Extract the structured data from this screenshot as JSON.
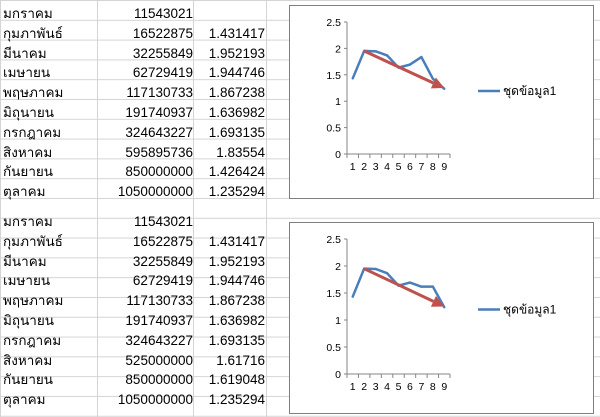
{
  "sheet": {
    "table1": [
      {
        "month": "มกราคม",
        "value": "11543021",
        "ratio": ""
      },
      {
        "month": "กุมภาพันธ์",
        "value": "16522875",
        "ratio": "1.431417"
      },
      {
        "month": "มีนาคม",
        "value": "32255849",
        "ratio": "1.952193"
      },
      {
        "month": "เมษายน",
        "value": "62729419",
        "ratio": "1.944746"
      },
      {
        "month": "พฤษภาคม",
        "value": "117130733",
        "ratio": "1.867238"
      },
      {
        "month": "มิถุนายน",
        "value": "191740937",
        "ratio": "1.636982"
      },
      {
        "month": "กรกฎาคม",
        "value": "324643227",
        "ratio": "1.693135"
      },
      {
        "month": "สิงหาคม",
        "value": "595895736",
        "ratio": "1.83554"
      },
      {
        "month": "กันยายน",
        "value": "850000000",
        "ratio": "1.426424"
      },
      {
        "month": "ตุลาคม",
        "value": "1050000000",
        "ratio": "1.235294"
      }
    ],
    "table2": [
      {
        "month": "มกราคม",
        "value": "11543021",
        "ratio": ""
      },
      {
        "month": "กุมภาพันธ์",
        "value": "16522875",
        "ratio": "1.431417"
      },
      {
        "month": "มีนาคม",
        "value": "32255849",
        "ratio": "1.952193"
      },
      {
        "month": "เมษายน",
        "value": "62729419",
        "ratio": "1.944746"
      },
      {
        "month": "พฤษภาคม",
        "value": "117130733",
        "ratio": "1.867238"
      },
      {
        "month": "มิถุนายน",
        "value": "191740937",
        "ratio": "1.636982"
      },
      {
        "month": "กรกฎาคม",
        "value": "324643227",
        "ratio": "1.693135"
      },
      {
        "month": "สิงหาคม",
        "value": "525000000",
        "ratio": "1.61716"
      },
      {
        "month": "กันยายน",
        "value": "850000000",
        "ratio": "1.619048"
      },
      {
        "month": "ตุลาคม",
        "value": "1050000000",
        "ratio": "1.235294"
      }
    ]
  },
  "chart_data": [
    {
      "type": "line",
      "x": [
        1,
        2,
        3,
        4,
        5,
        6,
        7,
        8,
        9
      ],
      "series": [
        {
          "name": "ชุดข้อมูล1",
          "values": [
            1.431417,
            1.952193,
            1.944746,
            1.867238,
            1.636982,
            1.693135,
            1.83554,
            1.426424,
            1.235294
          ],
          "color": "#4a7ebb"
        }
      ],
      "ylim": [
        0,
        2.5
      ],
      "yticks": [
        "0",
        "0.5",
        "1",
        "1.5",
        "2",
        "2.5"
      ],
      "xticks": [
        "1",
        "2",
        "3",
        "4",
        "5",
        "6",
        "7",
        "8",
        "9"
      ],
      "legend": "right",
      "trend_arrow": {
        "from_x": 2,
        "from_y": 1.95,
        "to_x": 9,
        "to_y": 1.25,
        "color": "#c0504d"
      }
    },
    {
      "type": "line",
      "x": [
        1,
        2,
        3,
        4,
        5,
        6,
        7,
        8,
        9
      ],
      "series": [
        {
          "name": "ชุดข้อมูล1",
          "values": [
            1.431417,
            1.952193,
            1.944746,
            1.867238,
            1.636982,
            1.693135,
            1.61716,
            1.619048,
            1.235294
          ],
          "color": "#4a7ebb"
        }
      ],
      "ylim": [
        0,
        2.5
      ],
      "yticks": [
        "0",
        "0.5",
        "1",
        "1.5",
        "2",
        "2.5"
      ],
      "xticks": [
        "1",
        "2",
        "3",
        "4",
        "5",
        "6",
        "7",
        "8",
        "9"
      ],
      "legend": "right",
      "trend_arrow": {
        "from_x": 2,
        "from_y": 1.95,
        "to_x": 9,
        "to_y": 1.25,
        "color": "#c0504d"
      }
    }
  ]
}
